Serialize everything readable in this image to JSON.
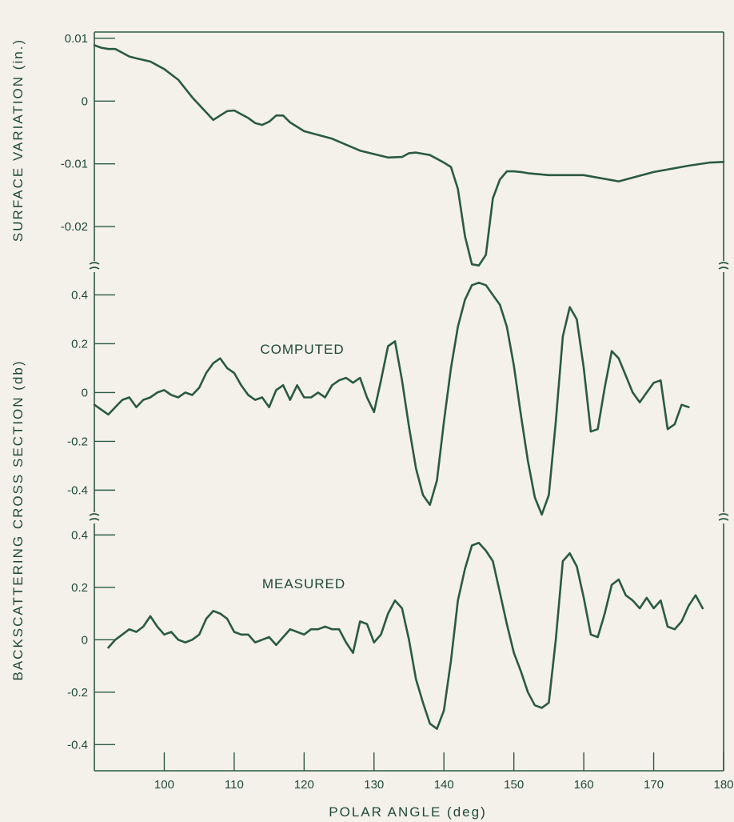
{
  "chart_data": [
    {
      "type": "line",
      "name": "surface",
      "ylabel": "SURFACE VARIATION (in.)",
      "xlim": [
        90,
        180
      ],
      "ylim": [
        -0.027,
        0.011
      ],
      "yticks": [
        0.01,
        0,
        -0.01,
        -0.02
      ],
      "ytick_labels": [
        "0.01",
        "0",
        "-0.01",
        "-0.02"
      ],
      "series": [
        {
          "x": [
            90,
            91,
            92,
            93,
            94,
            95,
            96,
            98,
            100,
            102,
            104,
            106,
            107,
            108,
            109,
            110,
            112,
            113,
            114,
            115,
            116,
            117,
            118,
            120,
            124,
            128,
            132,
            134,
            135,
            136,
            138,
            140,
            141,
            142,
            143,
            144,
            145,
            146,
            147,
            148,
            149,
            150,
            151,
            152,
            155,
            160,
            165,
            170,
            175,
            178,
            180
          ],
          "y": [
            0.0089,
            0.0085,
            0.0083,
            0.0083,
            0.0077,
            0.0071,
            0.0068,
            0.0063,
            0.0051,
            0.0034,
            0.0006,
            -0.0018,
            -0.003,
            -0.0023,
            -0.0016,
            -0.0015,
            -0.0027,
            -0.0035,
            -0.0038,
            -0.0033,
            -0.0023,
            -0.0023,
            -0.0034,
            -0.0048,
            -0.006,
            -0.0079,
            -0.009,
            -0.0089,
            -0.0083,
            -0.0082,
            -0.0086,
            -0.0098,
            -0.0105,
            -0.014,
            -0.0215,
            -0.026,
            -0.0262,
            -0.0245,
            -0.0155,
            -0.0125,
            -0.0112,
            -0.0112,
            -0.0113,
            -0.0115,
            -0.0118,
            -0.0118,
            -0.0128,
            -0.0113,
            -0.0103,
            -0.0098,
            -0.0097
          ]
        }
      ]
    },
    {
      "type": "line",
      "name": "computed",
      "label": "COMPUTED",
      "xlim": [
        90,
        180
      ],
      "ylim": [
        -0.53,
        0.5
      ],
      "yticks": [
        0.4,
        0.2,
        0,
        -0.2,
        -0.4
      ],
      "ytick_labels": [
        "0.4",
        "0.2",
        "0",
        "-0.2",
        "-0.4"
      ],
      "series": [
        {
          "x": [
            90,
            91,
            92,
            93,
            94,
            95,
            96,
            97,
            98,
            99,
            100,
            101,
            102,
            103,
            104,
            105,
            106,
            107,
            108,
            109,
            110,
            111,
            112,
            113,
            114,
            115,
            116,
            117,
            118,
            119,
            120,
            121,
            122,
            123,
            124,
            125,
            126,
            127,
            128,
            129,
            130,
            131,
            132,
            133,
            134,
            135,
            136,
            137,
            138,
            139,
            140,
            141,
            142,
            143,
            144,
            145,
            146,
            147,
            148,
            149,
            150,
            151,
            152,
            153,
            154,
            155,
            156,
            157,
            158,
            159,
            160,
            161,
            162,
            163,
            164,
            165,
            166,
            167,
            168,
            169,
            170,
            171,
            172,
            173,
            174,
            175
          ],
          "y": [
            -0.05,
            -0.07,
            -0.09,
            -0.06,
            -0.03,
            -0.02,
            -0.06,
            -0.03,
            -0.02,
            0.0,
            0.01,
            -0.01,
            -0.02,
            0.0,
            -0.01,
            0.02,
            0.08,
            0.12,
            0.14,
            0.1,
            0.08,
            0.03,
            -0.01,
            -0.03,
            -0.02,
            -0.06,
            0.01,
            0.03,
            -0.03,
            0.03,
            -0.02,
            -0.02,
            0.0,
            -0.02,
            0.03,
            0.05,
            0.06,
            0.04,
            0.06,
            -0.02,
            -0.08,
            0.05,
            0.19,
            0.21,
            0.05,
            -0.14,
            -0.31,
            -0.42,
            -0.46,
            -0.36,
            -0.12,
            0.1,
            0.27,
            0.38,
            0.44,
            0.45,
            0.44,
            0.4,
            0.36,
            0.27,
            0.11,
            -0.09,
            -0.28,
            -0.43,
            -0.5,
            -0.42,
            -0.12,
            0.23,
            0.35,
            0.3,
            0.1,
            -0.16,
            -0.15,
            0.02,
            0.17,
            0.14,
            0.07,
            0.0,
            -0.04,
            0.0,
            0.04,
            0.05,
            -0.15,
            -0.13,
            -0.05,
            -0.06
          ]
        }
      ]
    },
    {
      "type": "line",
      "name": "measured",
      "label": "MEASURED",
      "xlim": [
        90,
        180
      ],
      "ylim": [
        -0.5,
        0.45
      ],
      "yticks": [
        0.4,
        0.2,
        0,
        -0.2,
        -0.4
      ],
      "ytick_labels": [
        "0.4",
        "0.2",
        "0",
        "-0.2",
        "-0.4"
      ],
      "series": [
        {
          "x": [
            92,
            93,
            94,
            95,
            96,
            97,
            98,
            99,
            100,
            101,
            102,
            103,
            104,
            105,
            106,
            107,
            108,
            109,
            110,
            111,
            112,
            113,
            114,
            115,
            116,
            117,
            118,
            119,
            120,
            121,
            122,
            123,
            124,
            125,
            126,
            127,
            128,
            129,
            130,
            131,
            132,
            133,
            134,
            135,
            136,
            137,
            138,
            139,
            140,
            141,
            142,
            143,
            144,
            145,
            146,
            147,
            148,
            149,
            150,
            151,
            152,
            153,
            154,
            155,
            156,
            157,
            158,
            159,
            160,
            161,
            162,
            163,
            164,
            165,
            166,
            167,
            168,
            169,
            170,
            171,
            172,
            173,
            174,
            175,
            176,
            177
          ],
          "y": [
            -0.03,
            0.0,
            0.02,
            0.04,
            0.03,
            0.05,
            0.09,
            0.05,
            0.02,
            0.03,
            0.0,
            -0.01,
            0.0,
            0.02,
            0.08,
            0.11,
            0.1,
            0.08,
            0.03,
            0.02,
            0.02,
            -0.01,
            0.0,
            0.01,
            -0.02,
            0.01,
            0.04,
            0.03,
            0.02,
            0.04,
            0.04,
            0.05,
            0.04,
            0.04,
            -0.01,
            -0.05,
            0.07,
            0.06,
            -0.01,
            0.02,
            0.1,
            0.15,
            0.12,
            0.0,
            -0.15,
            -0.24,
            -0.32,
            -0.34,
            -0.27,
            -0.08,
            0.15,
            0.27,
            0.36,
            0.37,
            0.34,
            0.3,
            0.18,
            0.06,
            -0.05,
            -0.12,
            -0.2,
            -0.25,
            -0.26,
            -0.24,
            0.0,
            0.3,
            0.33,
            0.28,
            0.16,
            0.02,
            0.01,
            0.1,
            0.21,
            0.23,
            0.17,
            0.15,
            0.12,
            0.16,
            0.12,
            0.15,
            0.05,
            0.04,
            0.07,
            0.13,
            0.17,
            0.12
          ]
        }
      ]
    }
  ],
  "shared": {
    "backscatter_ylabel": "BACKSCATTERING CROSS SECTION (db)",
    "xlabel": "POLAR ANGLE (deg)",
    "xticks": [
      100,
      110,
      120,
      130,
      140,
      150,
      160,
      170,
      180
    ],
    "xtick_labels": [
      "100",
      "110",
      "120",
      "130",
      "140",
      "150",
      "160",
      "170",
      "180"
    ],
    "line_color": "#2a5a42",
    "background": "#f4f1ea"
  }
}
